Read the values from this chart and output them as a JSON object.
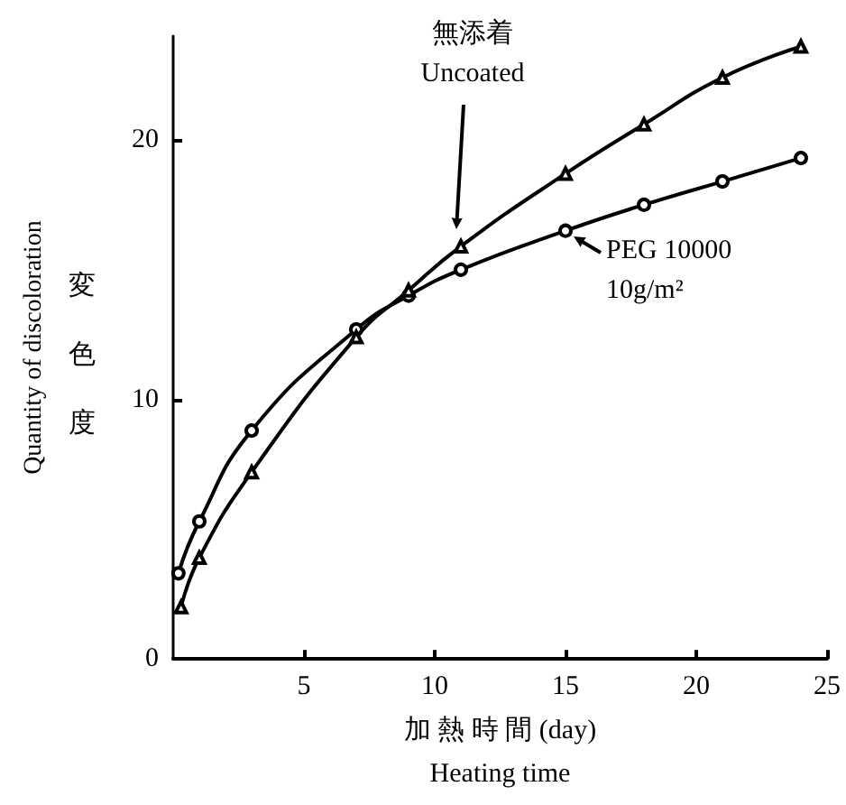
{
  "chart_data": {
    "type": "line",
    "xlabel": "加 熱 時 間 (day)\nHeating time",
    "ylabel": "Quantity of discoloration",
    "xlim": [
      0,
      25
    ],
    "xticks": [
      5,
      10,
      15,
      20,
      25
    ],
    "ylim": [
      0,
      24
    ],
    "yticks": [
      0,
      10,
      20
    ],
    "grid": false,
    "series": [
      {
        "color": "#000000",
        "marker": "triangle",
        "x": [
          0.3,
          1,
          3,
          7,
          9,
          11,
          15,
          18,
          21,
          24
        ],
        "values": [
          2.0,
          3.9,
          7.2,
          12.4,
          14.2,
          15.9,
          18.7,
          20.6,
          22.4,
          23.6
        ]
      },
      {
        "color": "#000000",
        "marker": "circle",
        "x": [
          0.2,
          1,
          3,
          7,
          9,
          11,
          15,
          18,
          21,
          24
        ],
        "values": [
          3.3,
          5.3,
          8.8,
          12.7,
          14.0,
          15.0,
          16.5,
          17.5,
          18.4,
          19.3
        ]
      }
    ],
    "annotations": [
      "無添着\nUncoated",
      "PEG 10000\n10g/m²",
      "変色度"
    ]
  }
}
